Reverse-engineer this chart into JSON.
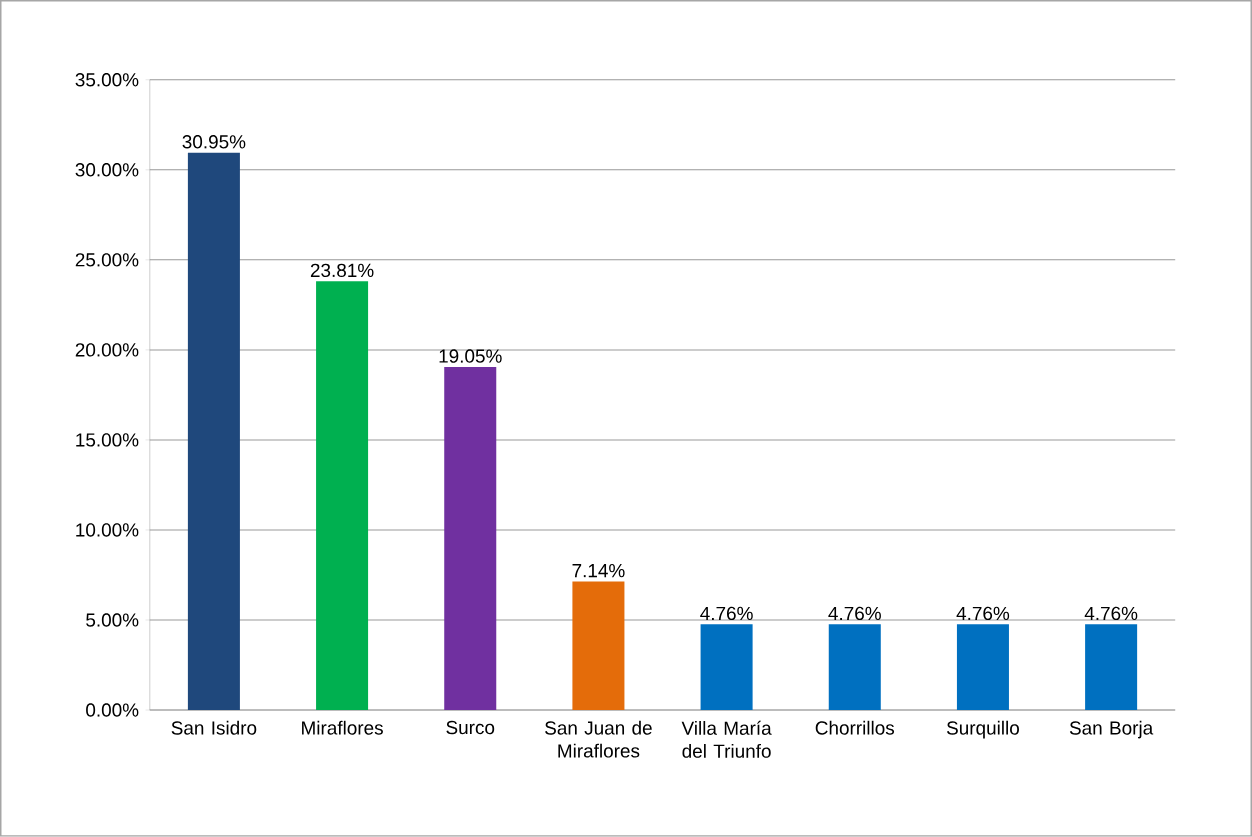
{
  "chart_data": {
    "type": "bar",
    "categories": [
      "San Isidro",
      "Miraflores",
      "Surco",
      "San Juan de Miraflores",
      "Villa María del Triunfo",
      "Chorrillos",
      "Surquillo",
      "San Borja"
    ],
    "values": [
      30.95,
      23.81,
      19.05,
      7.14,
      4.76,
      4.76,
      4.76,
      4.76
    ],
    "colors": [
      "#1f487c",
      "#00b050",
      "#7030a0",
      "#e46c0a",
      "#0070c0",
      "#0070c0",
      "#0070c0",
      "#0070c0"
    ],
    "value_labels": [
      "30.95%",
      "23.81%",
      "19.05%",
      "7.14%",
      "4.76%",
      "4.76%",
      "4.76%",
      "4.76%"
    ],
    "ylim": [
      0,
      35
    ],
    "yticks": [
      {
        "value": 0,
        "label": "0.00%"
      },
      {
        "value": 5,
        "label": "5.00%"
      },
      {
        "value": 10,
        "label": "10.00%"
      },
      {
        "value": 15,
        "label": "15.00%"
      },
      {
        "value": 20,
        "label": "20.00%"
      },
      {
        "value": 25,
        "label": "25.00%"
      },
      {
        "value": 30,
        "label": "30.00%"
      },
      {
        "value": 35,
        "label": "35.00%"
      }
    ],
    "grid": "y"
  }
}
